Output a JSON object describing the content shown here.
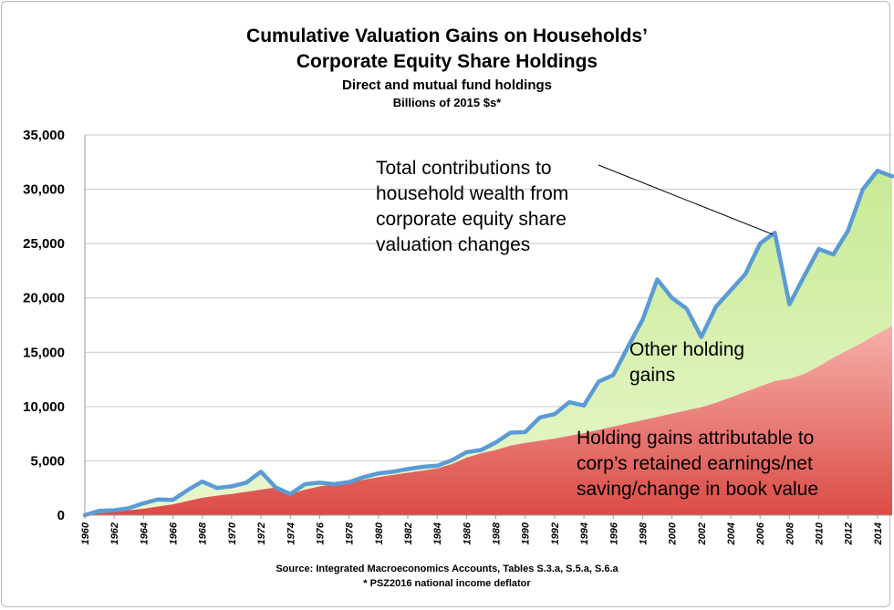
{
  "chart_data": {
    "type": "area",
    "title": "Cumulative Valuation Gains on Households’",
    "title_line2": "Corporate Equity Share Holdings",
    "subtitle": "Direct and mutual fund holdings",
    "subtitle2": "Billions of 2015 $s*",
    "xlabel": "",
    "ylabel": "",
    "ylim": [
      0,
      35000
    ],
    "xlim": [
      1960,
      2015
    ],
    "yticks": [
      0,
      5000,
      10000,
      15000,
      20000,
      25000,
      30000,
      35000
    ],
    "ytick_labels": [
      "0",
      "5,000",
      "10,000",
      "15,000",
      "20,000",
      "25,000",
      "30,000",
      "35,000"
    ],
    "xtick_labels": [
      "1960",
      "1962",
      "1964",
      "1966",
      "1968",
      "1970",
      "1972",
      "1974",
      "1976",
      "1978",
      "1980",
      "1982",
      "1984",
      "1986",
      "1988",
      "1990",
      "1992",
      "1994",
      "1996",
      "1998",
      "2000",
      "2002",
      "2004",
      "2006",
      "2008",
      "2010",
      "2012",
      "2014"
    ],
    "x": [
      1960,
      1961,
      1962,
      1963,
      1964,
      1965,
      1966,
      1967,
      1968,
      1969,
      1970,
      1971,
      1972,
      1973,
      1974,
      1975,
      1976,
      1977,
      1978,
      1979,
      1980,
      1981,
      1982,
      1983,
      1984,
      1985,
      1986,
      1987,
      1988,
      1989,
      1990,
      1991,
      1992,
      1993,
      1994,
      1995,
      1996,
      1997,
      1998,
      1999,
      2000,
      2001,
      2002,
      2003,
      2004,
      2005,
      2006,
      2007,
      2008,
      2009,
      2010,
      2011,
      2012,
      2013,
      2014,
      2015
    ],
    "series": [
      {
        "name": "Holding gains attributable to corp’s retained earnings/net saving/change in book value",
        "color": "#e05a58",
        "values": [
          0,
          200,
          300,
          450,
          600,
          800,
          1000,
          1300,
          1600,
          1800,
          1950,
          2150,
          2350,
          2550,
          1950,
          2350,
          2650,
          2850,
          3050,
          3250,
          3500,
          3700,
          3900,
          4100,
          4300,
          4700,
          5300,
          5700,
          6000,
          6400,
          6650,
          6850,
          7050,
          7300,
          7550,
          7850,
          8150,
          8450,
          8750,
          9050,
          9350,
          9650,
          9950,
          10350,
          10850,
          11350,
          11850,
          12350,
          12550,
          13000,
          13700,
          14500,
          15200,
          15900,
          16700,
          17400
        ]
      },
      {
        "name": "Other holding gains",
        "color": "#cdeea0",
        "values": [
          0,
          200,
          150,
          200,
          500,
          650,
          400,
          1000,
          1500,
          700,
          700,
          850,
          1650,
          0,
          0,
          500,
          350,
          0,
          0,
          250,
          350,
          300,
          350,
          350,
          250,
          350,
          500,
          300,
          700,
          1200,
          1000,
          2150,
          2250,
          3100,
          2550,
          4450,
          4750,
          7050,
          9250,
          12650,
          10650,
          9350,
          6450,
          8850,
          9850,
          10850,
          13150,
          13650,
          6850,
          9000,
          10800,
          9500,
          11000,
          14100,
          15000,
          13800
        ]
      }
    ],
    "total_series": {
      "name": "Total",
      "color": "#5b9bd5",
      "values": [
        0,
        400,
        450,
        650,
        1100,
        1450,
        1400,
        2300,
        3100,
        2500,
        2650,
        3000,
        4000,
        2550,
        1950,
        2850,
        3000,
        2850,
        3050,
        3500,
        3850,
        4000,
        4250,
        4450,
        4550,
        5050,
        5800,
        6000,
        6700,
        7600,
        7650,
        9000,
        9300,
        10400,
        10100,
        12300,
        12900,
        15500,
        18000,
        21700,
        20000,
        19000,
        16400,
        19200,
        20700,
        22200,
        25000,
        26000,
        19400,
        22000,
        24500,
        24000,
        26200,
        30000,
        31700,
        31200
      ]
    }
  },
  "annotations": {
    "total_lines": [
      "Total contributions to",
      "household wealth from",
      "corporate equity share",
      "valuation changes"
    ],
    "other_lines": [
      "Other holding",
      "gains"
    ],
    "retained_lines": [
      "Holding gains attributable to",
      "corp’s retained earnings/net",
      "saving/change in book value"
    ],
    "arrow_target_year": 2007,
    "arrow_target_value": 26000
  },
  "footer": {
    "source": "Source: Integrated Macroeconomics Accounts, Tables S.3.a, S.5.a, S.6.a",
    "deflator": "* PSZ2016 national income deflator"
  },
  "colors": {
    "retained_top": "#f6b0aa",
    "retained_bottom": "#dc4b46",
    "other_top": "#c7ea95",
    "other_bottom": "#e9f7cc",
    "total_line": "#5b9bd5",
    "grid": "#c8c8c8"
  }
}
